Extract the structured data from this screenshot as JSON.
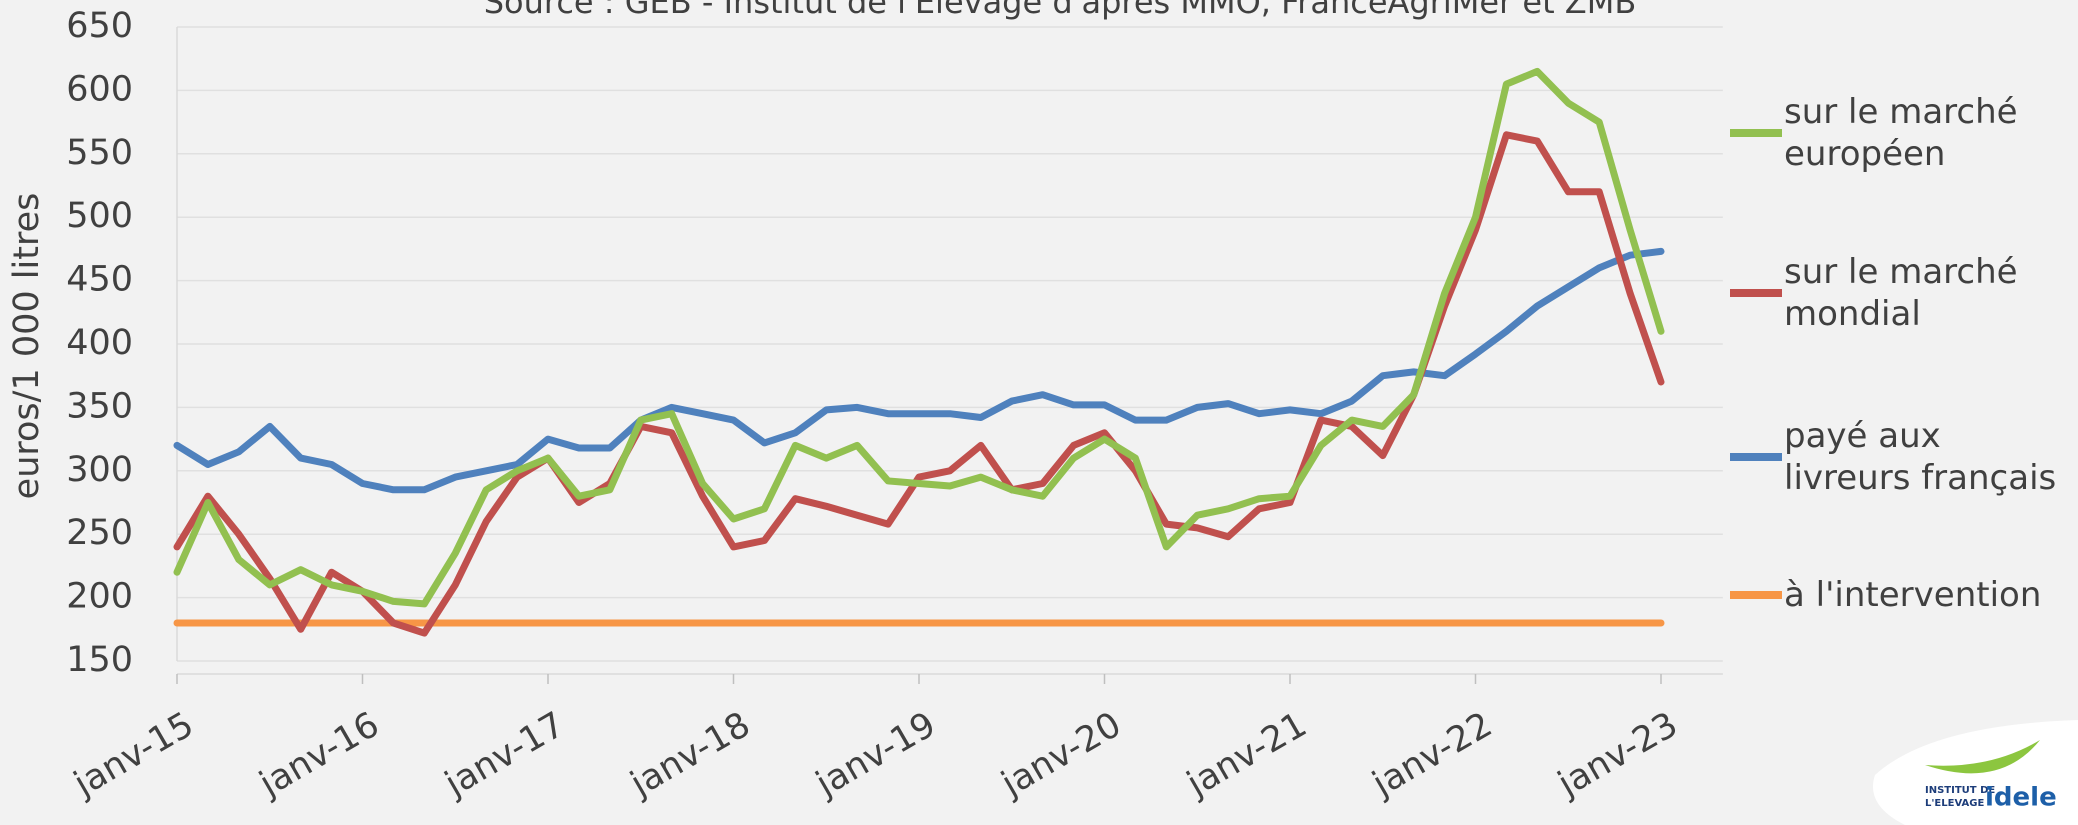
{
  "chart_data": {
    "type": "line",
    "source": "Source : GEB - Institut de l'Elevage d'après MMO, FranceAgriMer et ZMB",
    "y_label": "euros/1 000 litres",
    "logo": {
      "line1": "INSTITUT DE",
      "line2": "L'ELEVAGE",
      "name": "idele"
    },
    "x": [
      "2015-01",
      "2015-03",
      "2015-05",
      "2015-07",
      "2015-09",
      "2015-11",
      "2016-01",
      "2016-03",
      "2016-05",
      "2016-07",
      "2016-09",
      "2016-11",
      "2017-01",
      "2017-03",
      "2017-05",
      "2017-07",
      "2017-09",
      "2017-11",
      "2018-01",
      "2018-03",
      "2018-05",
      "2018-07",
      "2018-09",
      "2018-11",
      "2019-01",
      "2019-03",
      "2019-05",
      "2019-07",
      "2019-09",
      "2019-11",
      "2020-01",
      "2020-03",
      "2020-05",
      "2020-07",
      "2020-09",
      "2020-11",
      "2021-01",
      "2021-03",
      "2021-05",
      "2021-07",
      "2021-09",
      "2021-11",
      "2022-01",
      "2022-03",
      "2022-05",
      "2022-07",
      "2022-09",
      "2022-11",
      "2023-01"
    ],
    "xlim": [
      "2015-01",
      "2023-05"
    ],
    "xticks": [
      {
        "value": "2015-01",
        "label": "janv-15"
      },
      {
        "value": "2016-01",
        "label": "janv-16"
      },
      {
        "value": "2017-01",
        "label": "janv-17"
      },
      {
        "value": "2018-01",
        "label": "janv-18"
      },
      {
        "value": "2019-01",
        "label": "janv-19"
      },
      {
        "value": "2020-01",
        "label": "janv-20"
      },
      {
        "value": "2021-01",
        "label": "janv-21"
      },
      {
        "value": "2022-01",
        "label": "janv-22"
      },
      {
        "value": "2023-01",
        "label": "janv-23"
      }
    ],
    "ylim": [
      150,
      650
    ],
    "yticks": [
      150,
      200,
      250,
      300,
      350,
      400,
      450,
      500,
      550,
      600,
      650
    ],
    "grid": true,
    "series": [
      {
        "name": "sur le marché européen",
        "color": "#92c050",
        "values": [
          220,
          275,
          230,
          210,
          222,
          210,
          205,
          197,
          195,
          235,
          285,
          300,
          310,
          280,
          285,
          340,
          345,
          290,
          262,
          270,
          320,
          310,
          320,
          292,
          290,
          288,
          295,
          285,
          280,
          310,
          325,
          310,
          240,
          265,
          270,
          278,
          280,
          320,
          340,
          335,
          360,
          440,
          500,
          605,
          615,
          590,
          575,
          490,
          410
        ]
      },
      {
        "name": "sur le marché mondial",
        "color": "#c0504d",
        "values": [
          240,
          280,
          250,
          215,
          175,
          220,
          205,
          180,
          172,
          210,
          260,
          295,
          310,
          275,
          290,
          335,
          330,
          280,
          240,
          245,
          278,
          272,
          265,
          258,
          295,
          300,
          320,
          285,
          290,
          320,
          330,
          300,
          258,
          255,
          248,
          270,
          275,
          340,
          335,
          312,
          360,
          430,
          490,
          565,
          560,
          520,
          520,
          440,
          370
        ]
      },
      {
        "name": "payé aux livreurs français",
        "color": "#4f81bd",
        "values": [
          320,
          305,
          315,
          335,
          310,
          305,
          290,
          285,
          285,
          295,
          300,
          305,
          325,
          318,
          318,
          340,
          350,
          345,
          340,
          322,
          330,
          348,
          350,
          345,
          345,
          345,
          342,
          355,
          360,
          352,
          352,
          340,
          340,
          350,
          353,
          345,
          348,
          345,
          355,
          375,
          378,
          375,
          392,
          410,
          430,
          445,
          460,
          470,
          473
        ]
      },
      {
        "name": "à l'intervention",
        "color": "#f79646",
        "values": [
          180,
          180,
          180,
          180,
          180,
          180,
          180,
          180,
          180,
          180,
          180,
          180,
          180,
          180,
          180,
          180,
          180,
          180,
          180,
          180,
          180,
          180,
          180,
          180,
          180,
          180,
          180,
          180,
          180,
          180,
          180,
          180,
          180,
          180,
          180,
          180,
          180,
          180,
          180,
          180,
          180,
          180,
          180,
          180,
          180,
          180,
          180,
          180,
          180
        ]
      }
    ]
  }
}
